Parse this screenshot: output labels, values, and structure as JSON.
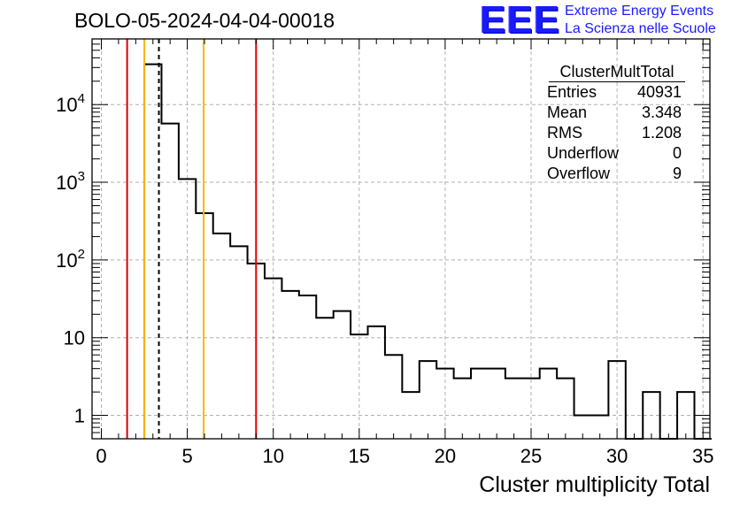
{
  "header": {
    "title": "BOLO-05-2024-04-04-00018"
  },
  "logo": {
    "mark": "EEE",
    "line1": "Extreme Energy Events",
    "line2": "La Scienza nelle Scuole"
  },
  "stats": {
    "title": "ClusterMultTotal",
    "rows": [
      {
        "label": "Entries",
        "value": "40931"
      },
      {
        "label": "Mean",
        "value": "3.348"
      },
      {
        "label": "RMS",
        "value": "1.208"
      },
      {
        "label": "Underflow",
        "value": "0"
      },
      {
        "label": "Overflow",
        "value": "9"
      }
    ]
  },
  "chart_data": {
    "type": "bar",
    "title": "BOLO-05-2024-04-04-00018",
    "xlabel": "Cluster multiplicity Total",
    "ylabel": "",
    "xlim": [
      -0.5,
      35.5
    ],
    "ylim": [
      0.5,
      70000
    ],
    "yscale": "log",
    "grid": true,
    "bin_width": 1,
    "bin_low_edges": [
      2.5,
      3.5,
      4.5,
      5.5,
      6.5,
      7.5,
      8.5,
      9.5,
      10.5,
      11.5,
      12.5,
      13.5,
      14.5,
      15.5,
      16.5,
      17.5,
      18.5,
      19.5,
      20.5,
      21.5,
      22.5,
      23.5,
      24.5,
      25.5,
      26.5,
      27.5,
      28.5,
      29.5,
      30.5,
      31.5,
      32.5,
      33.5,
      34.5
    ],
    "values": [
      33000,
      5700,
      1100,
      400,
      220,
      150,
      90,
      58,
      40,
      35,
      18,
      22,
      11,
      14,
      6,
      2,
      5,
      4,
      3,
      4,
      4,
      3,
      3,
      4,
      3,
      1,
      1,
      5,
      0,
      2,
      0,
      2,
      0
    ],
    "x_ticks": [
      "0",
      "5",
      "10",
      "15",
      "20",
      "25",
      "30",
      "35"
    ],
    "y_ticks": [
      {
        "value": 1,
        "label": "1"
      },
      {
        "value": 10,
        "label": "10"
      },
      {
        "value": 100,
        "label": "10",
        "exp": "2"
      },
      {
        "value": 1000,
        "label": "10",
        "exp": "3"
      },
      {
        "value": 10000,
        "label": "10",
        "exp": "4"
      }
    ],
    "vertical_lines": [
      {
        "x": 1.5,
        "color": "#e00000",
        "style": "solid"
      },
      {
        "x": 2.5,
        "color": "#f5b800",
        "style": "solid"
      },
      {
        "x": 3.348,
        "color": "#000000",
        "style": "dashed"
      },
      {
        "x": 5.95,
        "color": "#f5b800",
        "style": "solid"
      },
      {
        "x": 9.0,
        "color": "#e00000",
        "style": "solid"
      }
    ],
    "line_color": "#000000"
  }
}
